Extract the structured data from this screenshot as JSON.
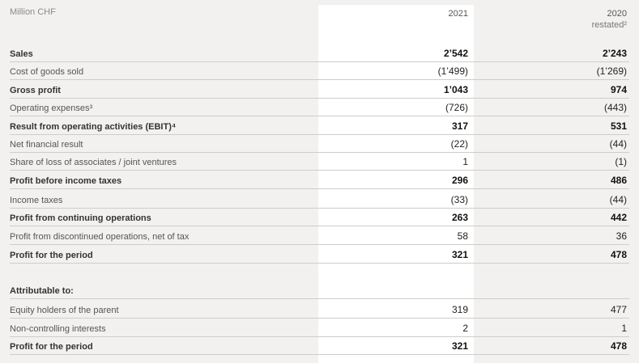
{
  "header": {
    "unit": "Million CHF",
    "col_2021": "2021",
    "col_2020": "2020",
    "col_2020_note": "restated²"
  },
  "rows": [
    {
      "label": "Sales",
      "v2021": "2’542",
      "v2020": "2’243",
      "bold": true
    },
    {
      "label": "Cost of goods sold",
      "v2021": "(1’499)",
      "v2020": "(1’269)",
      "bold": false
    },
    {
      "label": "Gross profit",
      "v2021": "1’043",
      "v2020": "974",
      "bold": true
    },
    {
      "label": "Operating expenses³",
      "v2021": "(726)",
      "v2020": "(443)",
      "bold": false
    },
    {
      "label": "Result from operating activities (EBIT)⁴",
      "v2021": "317",
      "v2020": "531",
      "bold": true
    },
    {
      "label": "Net financial result",
      "v2021": "(22)",
      "v2020": "(44)",
      "bold": false
    },
    {
      "label": "Share of loss of associates / joint ventures",
      "v2021": "1",
      "v2020": "(1)",
      "bold": false
    },
    {
      "label": "Profit before income taxes",
      "v2021": "296",
      "v2020": "486",
      "bold": true
    },
    {
      "label": "Income taxes",
      "v2021": "(33)",
      "v2020": "(44)",
      "bold": false
    },
    {
      "label": "Profit from continuing operations",
      "v2021": "263",
      "v2020": "442",
      "bold": true
    },
    {
      "label": "Profit from discontinued operations, net of tax",
      "v2021": "58",
      "v2020": "36",
      "bold": false
    },
    {
      "label": "Profit for the period",
      "v2021": "321",
      "v2020": "478",
      "bold": true
    }
  ],
  "attributable": {
    "title": "Attributable to:",
    "rows": [
      {
        "label": "Equity holders of the parent",
        "v2021": "319",
        "v2020": "477",
        "bold": false
      },
      {
        "label": "Non-controlling interests",
        "v2021": "2",
        "v2020": "1",
        "bold": false
      },
      {
        "label": "Profit for the period",
        "v2021": "321",
        "v2020": "478",
        "bold": true
      }
    ]
  }
}
